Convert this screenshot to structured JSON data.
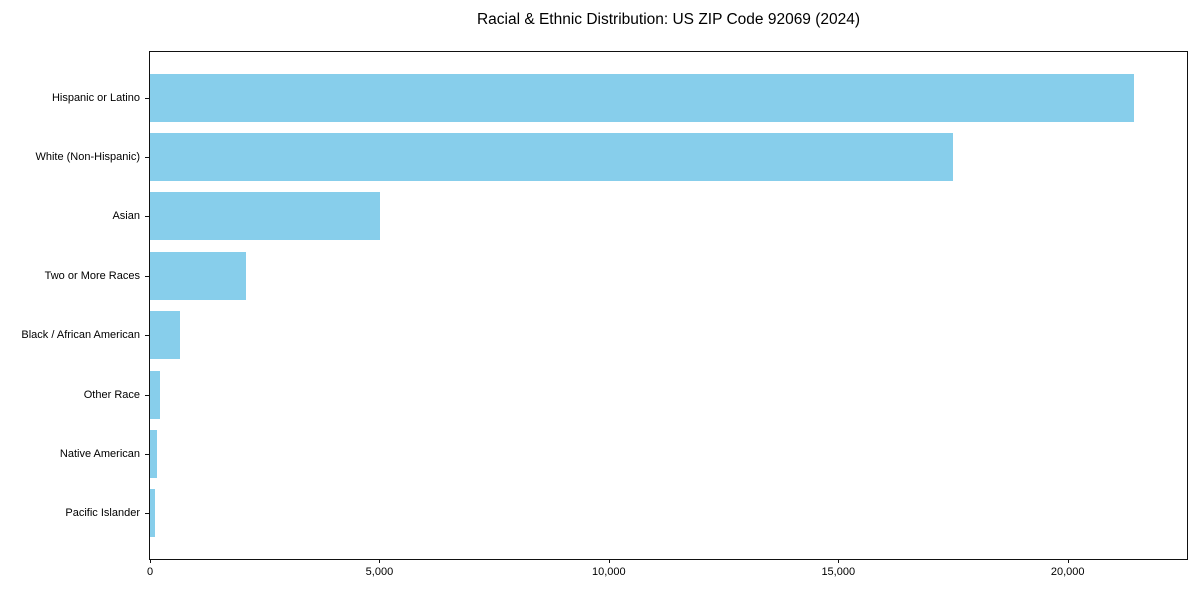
{
  "chart_data": {
    "type": "bar",
    "orientation": "horizontal",
    "title": "Racial & Ethnic Distribution: US ZIP Code 92069 (2024)",
    "categories": [
      "Hispanic or Latino",
      "White (Non-Hispanic)",
      "Asian",
      "Two or More Races",
      "Black / African American",
      "Other Race",
      "Native American",
      "Pacific Islander"
    ],
    "values": [
      21450,
      17500,
      5020,
      2090,
      650,
      210,
      150,
      110
    ],
    "xlabel": "",
    "ylabel": "",
    "xlim": [
      0,
      22600
    ],
    "xticks": [
      0,
      5000,
      10000,
      15000,
      20000
    ],
    "xtick_labels": [
      "0",
      "5,000",
      "10,000",
      "15,000",
      "20,000"
    ],
    "bar_color": "#87CEEB",
    "axis_color": "#111111",
    "grid": false,
    "legend": "none"
  }
}
